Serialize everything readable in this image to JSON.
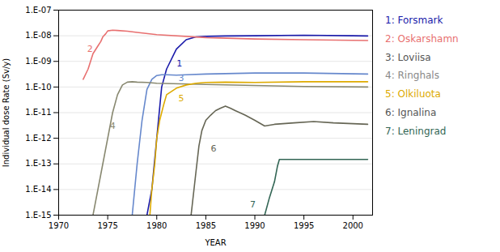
{
  "chart_data": {
    "type": "line",
    "xlabel": "YEAR",
    "ylabel": "Individual dose Rate (Sv/y)",
    "log": "y",
    "grid": true,
    "legend": "right",
    "xlim": [
      1970,
      2002
    ],
    "xticks": [
      1970,
      1975,
      1980,
      1985,
      1990,
      1995,
      2000
    ],
    "ylim": [
      1e-15,
      1e-07
    ],
    "yticks": [
      {
        "value": 1e-15,
        "label": "1.E-15"
      },
      {
        "value": 1e-14,
        "label": "1.E-14"
      },
      {
        "value": 1e-13,
        "label": "1.E-13"
      },
      {
        "value": 1e-12,
        "label": "1.E-12"
      },
      {
        "value": 1e-11,
        "label": "1.E-11"
      },
      {
        "value": 1e-10,
        "label": "1.E-10"
      },
      {
        "value": 1e-09,
        "label": "1.E-09"
      },
      {
        "value": 1e-08,
        "label": "1.E-08"
      },
      {
        "value": 1e-07,
        "label": "1.E-07"
      }
    ],
    "series": [
      {
        "name": "1",
        "color": "#1a1aaa",
        "label_x": 1982.3,
        "label_y": 8e-10,
        "x": [
          1979.0,
          1979.5,
          1980.0,
          1980.5,
          1981.0,
          1982.0,
          1983.0,
          1984.0,
          1985.0,
          1987.0,
          1990.0,
          1995.0,
          2000.0,
          2001.5
        ],
        "values": [
          1e-15,
          1e-14,
          1e-12,
          1e-10,
          5e-10,
          3e-09,
          7e-09,
          9e-09,
          9.5e-09,
          9.8e-09,
          1e-08,
          1.05e-08,
          1e-08,
          9.8e-09
        ]
      },
      {
        "name": "2",
        "color": "#E87070",
        "label_x": 1973.2,
        "label_y": 3e-09,
        "x": [
          1972.5,
          1973.0,
          1973.5,
          1974.0,
          1974.3,
          1974.5,
          1974.8,
          1975.0,
          1975.5,
          1976.0,
          1977.0,
          1978.0,
          1980.0,
          1985.0,
          1990.0,
          1995.0,
          2001.5
        ],
        "values": [
          2e-10,
          5e-10,
          2e-09,
          4e-09,
          6e-09,
          9e-09,
          1.2e-08,
          1.55e-08,
          1.65e-08,
          1.6e-08,
          1.5e-08,
          1.35e-08,
          1.1e-08,
          8.5e-09,
          7.5e-09,
          7e-09,
          6.5e-09
        ]
      },
      {
        "name": "3",
        "color": "#6688CC",
        "label_x": 1982.5,
        "label_y": 2.2e-10,
        "x": [
          1977.5,
          1978.0,
          1978.5,
          1979.0,
          1979.5,
          1980.0,
          1980.5,
          1981.0,
          1982.0,
          1983.0,
          1985.0,
          1990.0,
          1995.0,
          2001.5
        ],
        "values": [
          1e-15,
          1e-13,
          5e-12,
          8e-11,
          2e-10,
          2.8e-10,
          3e-10,
          3e-10,
          2.9e-10,
          3e-10,
          3.2e-10,
          3.5e-10,
          3.5e-10,
          3.2e-10
        ]
      },
      {
        "name": "4",
        "color": "#888870",
        "label_x": 1975.5,
        "label_y": 3e-12,
        "x": [
          1973.5,
          1974.0,
          1974.5,
          1975.0,
          1975.5,
          1976.0,
          1976.5,
          1977.0,
          1977.5,
          1978.0,
          1979.0,
          1980.0,
          1985.0,
          1990.0,
          1995.0,
          2001.5
        ],
        "values": [
          1e-15,
          1e-14,
          1e-13,
          1e-12,
          1e-11,
          5e-11,
          1.2e-10,
          1.55e-10,
          1.6e-10,
          1.55e-10,
          1.5e-10,
          1.4e-10,
          1.25e-10,
          1.15e-10,
          1.05e-10,
          1e-10
        ]
      },
      {
        "name": "5",
        "color": "#DDAA00",
        "label_x": 1982.5,
        "label_y": 3.5e-11,
        "x": [
          1979.3,
          1979.5,
          1979.8,
          1980.0,
          1980.3,
          1980.7,
          1981.0,
          1982.0,
          1983.0,
          1984.0,
          1985.0,
          1987.0,
          1990.0,
          1995.0,
          2001.5
        ],
        "values": [
          1e-15,
          1e-14,
          1e-13,
          1e-12,
          5e-12,
          2e-11,
          5e-11,
          9e-11,
          1.2e-10,
          1.4e-10,
          1.5e-10,
          1.55e-10,
          1.5e-10,
          1.6e-10,
          1.6e-10
        ]
      },
      {
        "name": "6",
        "color": "#666655",
        "label_x": 1985.8,
        "label_y": 4e-13,
        "x": [
          1983.5,
          1984.0,
          1984.3,
          1984.6,
          1985.0,
          1985.5,
          1986.0,
          1986.5,
          1987.0,
          1987.5,
          1988.0,
          1989.0,
          1990.0,
          1991.0,
          1992.0,
          1994.0,
          1996.0,
          1998.0,
          2001.5
        ],
        "values": [
          1e-15,
          5e-14,
          5e-13,
          2e-12,
          5e-12,
          8e-12,
          1.2e-11,
          1.5e-11,
          1.8e-11,
          1.5e-11,
          1.2e-11,
          8e-12,
          5e-12,
          3e-12,
          3.5e-12,
          4e-12,
          4.5e-12,
          4e-12,
          3.5e-12
        ]
      },
      {
        "name": "7",
        "color": "#336655",
        "label_x": 1989.8,
        "label_y": 2.5e-15,
        "x": [
          1991.0,
          1991.5,
          1992.0,
          1992.3,
          1992.5,
          1993.0,
          1995.0,
          2001.5
        ],
        "values": [
          1e-15,
          5e-15,
          2e-14,
          8e-14,
          1.5e-13,
          1.5e-13,
          1.5e-13,
          1.5e-13
        ]
      }
    ],
    "legend_entries": [
      {
        "text": "1: Forsmark",
        "color": "#1a1aaa"
      },
      {
        "text": "2: Oskarshamn",
        "color": "#E87070"
      },
      {
        "text": "3: Loviisa",
        "color": "#555555"
      },
      {
        "text": "4: Ringhals",
        "color": "#888888"
      },
      {
        "text": "5: Olkiluota",
        "color": "#DDAA00"
      },
      {
        "text": "6: Ignalina",
        "color": "#555555"
      },
      {
        "text": "7: Leningrad",
        "color": "#336655"
      }
    ]
  }
}
